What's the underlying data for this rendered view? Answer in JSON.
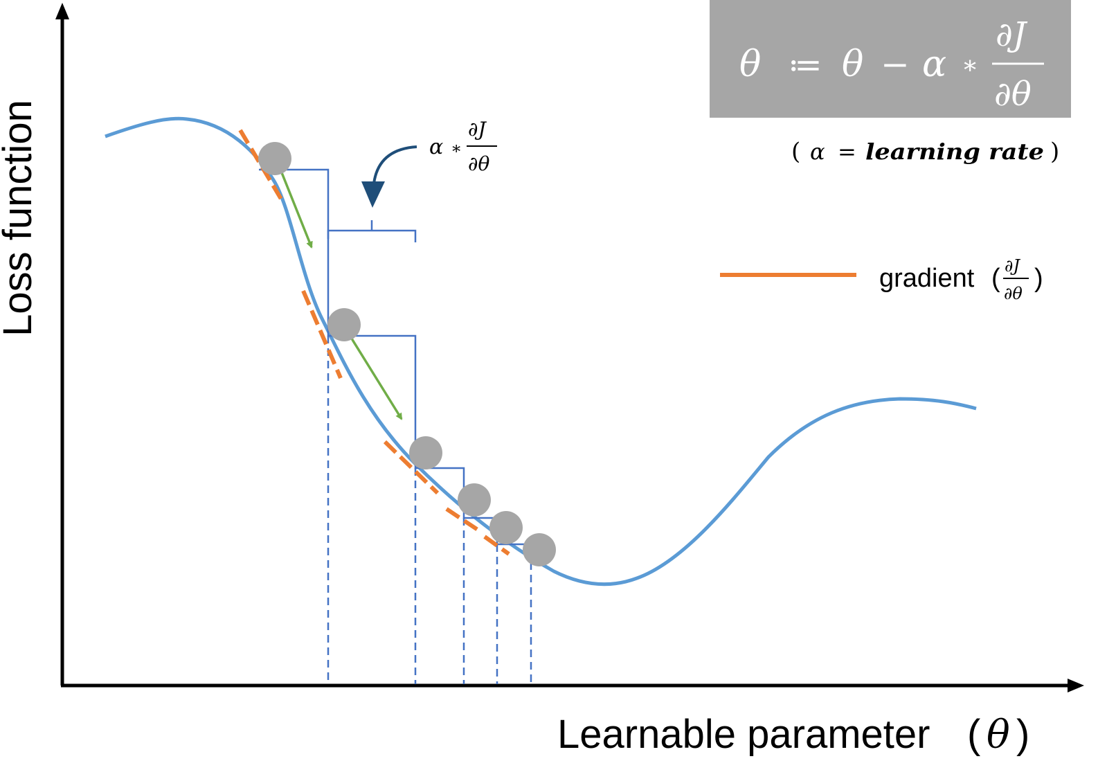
{
  "axes": {
    "y_label": "Loss function",
    "x_label": "Learnable parameter",
    "x_symbol": "θ"
  },
  "formula": {
    "lhs": "θ",
    "assign": "≔",
    "rhs_theta": "θ",
    "minus": "−",
    "alpha": "α",
    "times": "∗",
    "numerator": "∂J",
    "denominator": "∂θ"
  },
  "learning_rate_note": {
    "open": "(",
    "alpha": "α",
    "equals": "=",
    "text": "learning rate",
    "close": ")"
  },
  "step_annotation": {
    "alpha": "α",
    "times": "∗",
    "numerator": "∂J",
    "denominator": "∂θ"
  },
  "legend": {
    "label": "gradient",
    "open": "(",
    "numerator": "∂J",
    "denominator": "∂θ",
    "close": ")"
  },
  "colors": {
    "curve": "#5b9bd5",
    "gradient": "#ed7d31",
    "step_lines": "#4472c4",
    "arrows": "#70ad47",
    "callout_arrow": "#1f4e79",
    "ball": "#a6a6a6",
    "formula_bg": "#a6a6a6",
    "axis": "#000000"
  }
}
